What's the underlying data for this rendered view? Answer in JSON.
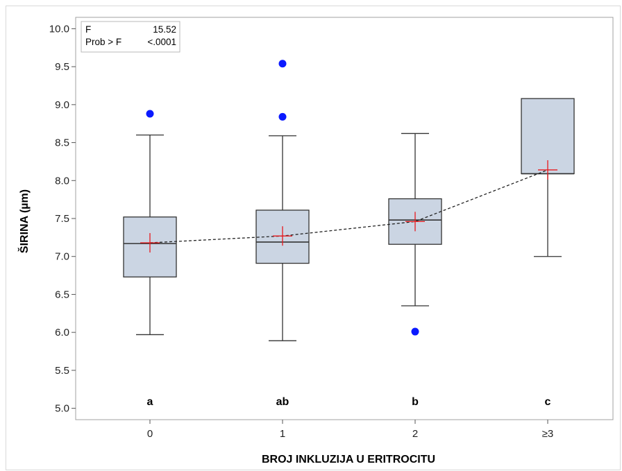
{
  "chart_data": {
    "type": "box",
    "xlabel": "BROJ INKLUZIJA U ERITROCITU",
    "ylabel": "ŠIRINA (µm)",
    "ylim": [
      4.85,
      10.15
    ],
    "yticks": [
      "5.0",
      "5.5",
      "6.0",
      "6.5",
      "7.0",
      "7.5",
      "8.0",
      "8.5",
      "9.0",
      "9.5",
      "10.0"
    ],
    "categories": [
      "0",
      "1",
      "2",
      "≥3"
    ],
    "group_letters": [
      "a",
      "ab",
      "b",
      "c"
    ],
    "boxes": [
      {
        "category": "0",
        "whisker_low": 5.97,
        "q1": 6.73,
        "median": 7.17,
        "q3": 7.52,
        "whisker_high": 8.6,
        "mean": 7.18,
        "outliers": [
          8.88
        ]
      },
      {
        "category": "1",
        "whisker_low": 5.89,
        "q1": 6.91,
        "median": 7.19,
        "q3": 7.61,
        "whisker_high": 8.59,
        "mean": 7.27,
        "outliers": [
          9.54,
          8.84
        ]
      },
      {
        "category": "2",
        "whisker_low": 6.35,
        "q1": 7.16,
        "median": 7.48,
        "q3": 7.76,
        "whisker_high": 8.62,
        "mean": 7.46,
        "outliers": [
          6.01
        ]
      },
      {
        "category": "≥3",
        "whisker_low": 7.0,
        "q1": 8.09,
        "median": 8.09,
        "q3": 9.08,
        "whisker_high": 9.08,
        "mean": 8.14,
        "outliers": []
      }
    ],
    "mean_line": true,
    "grid": false,
    "colors": {
      "box_fill": "#cbd5e3",
      "box_stroke": "#333333",
      "mean_marker": "#e8191c",
      "outlier": "#0b1aff",
      "mean_line": "#222222"
    },
    "stats_inset": {
      "rows": [
        {
          "label": "F",
          "value": "15.52"
        },
        {
          "label": "Prob > F",
          "value": "<.0001"
        }
      ],
      "placement": "top-left"
    }
  }
}
